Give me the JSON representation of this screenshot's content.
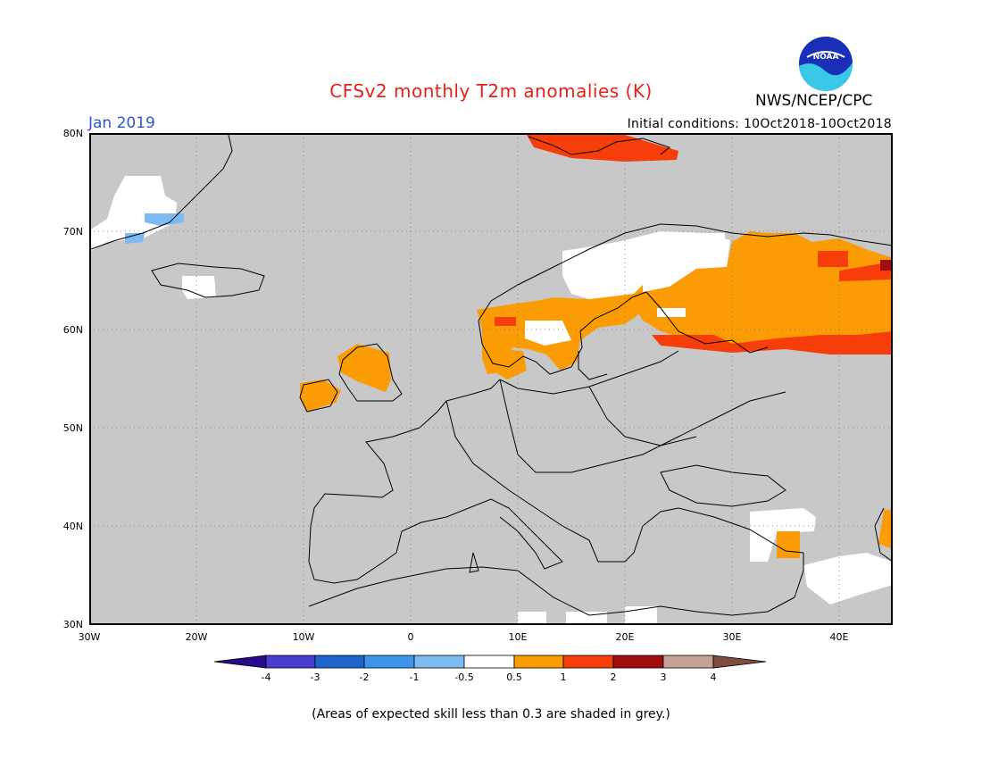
{
  "header": {
    "title": "CFSv2 monthly T2m anomalies (K)",
    "agency": "NWS/NCEP/CPC",
    "month": "Jan 2019",
    "initial_conditions": "Initial conditions: 10Oct2018-10Oct2018"
  },
  "logo": {
    "text": "NOAA"
  },
  "footnote": "(Areas of expected skill less than 0.3 are shaded in grey.)",
  "map": {
    "lat_labels": [
      "80N",
      "70N",
      "60N",
      "50N",
      "40N",
      "30N"
    ],
    "lon_labels": [
      "30W",
      "20W",
      "10W",
      "0",
      "10E",
      "20E",
      "30E",
      "40E"
    ],
    "background_color": "#c8c8c8"
  },
  "colorbar": {
    "labels": [
      "-4",
      "-3",
      "-2",
      "-1",
      "-0.5",
      "0.5",
      "1",
      "2",
      "3",
      "4"
    ],
    "colors": [
      "#2a0a8c",
      "#4a3ed0",
      "#1f64d0",
      "#3c96ec",
      "#7cbaf2",
      "#ffffff",
      "#fb9c05",
      "#f73d0a",
      "#a00d0d",
      "#c4a296",
      "#7e4b3e"
    ]
  }
}
